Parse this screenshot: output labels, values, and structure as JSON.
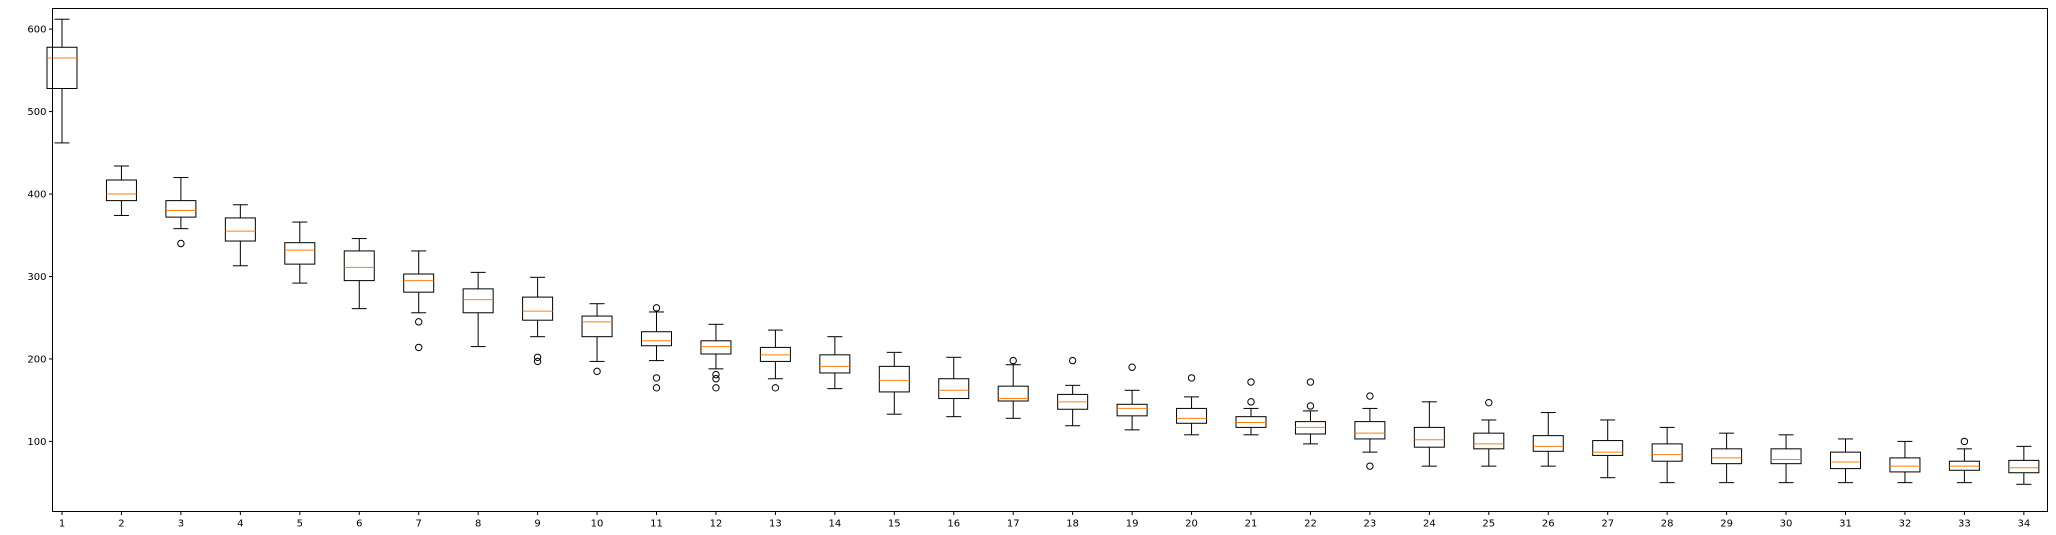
{
  "chart_data": {
    "type": "boxplot",
    "title": "",
    "xlabel": "",
    "ylabel": "",
    "ylim": [
      15,
      625
    ],
    "yticks": [
      100,
      200,
      300,
      400,
      500,
      600
    ],
    "grid": false,
    "categories": [
      "1",
      "2",
      "3",
      "4",
      "5",
      "6",
      "7",
      "8",
      "9",
      "10",
      "11",
      "12",
      "13",
      "14",
      "15",
      "16",
      "17",
      "18",
      "19",
      "20",
      "21",
      "22",
      "23",
      "24",
      "25",
      "26",
      "27",
      "28",
      "29",
      "30",
      "31",
      "32",
      "33",
      "34"
    ],
    "boxes": [
      {
        "whislo": 462,
        "q1": 528,
        "med": 565,
        "q3": 578,
        "whishi": 612,
        "fliers": []
      },
      {
        "whislo": 374,
        "q1": 392,
        "med": 400,
        "q3": 417,
        "whishi": 434,
        "fliers": []
      },
      {
        "whislo": 358,
        "q1": 372,
        "med": 380,
        "q3": 392,
        "whishi": 420,
        "fliers": [
          340
        ]
      },
      {
        "whislo": 313,
        "q1": 343,
        "med": 355,
        "q3": 371,
        "whishi": 387,
        "fliers": []
      },
      {
        "whislo": 292,
        "q1": 315,
        "med": 332,
        "q3": 341,
        "whishi": 366,
        "fliers": []
      },
      {
        "whislo": 261,
        "q1": 295,
        "med": 311,
        "q3": 331,
        "whishi": 346,
        "fliers": []
      },
      {
        "whislo": 256,
        "q1": 281,
        "med": 295,
        "q3": 303,
        "whishi": 331,
        "fliers": [
          245,
          214
        ]
      },
      {
        "whislo": 215,
        "q1": 256,
        "med": 272,
        "q3": 285,
        "whishi": 305,
        "fliers": []
      },
      {
        "whislo": 227,
        "q1": 247,
        "med": 258,
        "q3": 275,
        "whishi": 299,
        "fliers": [
          202,
          197
        ]
      },
      {
        "whislo": 197,
        "q1": 227,
        "med": 245,
        "q3": 252,
        "whishi": 267,
        "fliers": [
          185
        ]
      },
      {
        "whislo": 198,
        "q1": 216,
        "med": 222,
        "q3": 233,
        "whishi": 257,
        "fliers": [
          262,
          177,
          165
        ]
      },
      {
        "whislo": 188,
        "q1": 206,
        "med": 215,
        "q3": 222,
        "whishi": 242,
        "fliers": [
          181,
          176,
          165
        ]
      },
      {
        "whislo": 176,
        "q1": 197,
        "med": 205,
        "q3": 214,
        "whishi": 235,
        "fliers": [
          165
        ]
      },
      {
        "whislo": 164,
        "q1": 183,
        "med": 191,
        "q3": 205,
        "whishi": 227,
        "fliers": []
      },
      {
        "whislo": 133,
        "q1": 160,
        "med": 174,
        "q3": 191,
        "whishi": 208,
        "fliers": []
      },
      {
        "whislo": 130,
        "q1": 152,
        "med": 162,
        "q3": 176,
        "whishi": 202,
        "fliers": []
      },
      {
        "whislo": 128,
        "q1": 149,
        "med": 152,
        "q3": 167,
        "whishi": 193,
        "fliers": [
          198
        ]
      },
      {
        "whislo": 119,
        "q1": 139,
        "med": 148,
        "q3": 157,
        "whishi": 168,
        "fliers": [
          198
        ]
      },
      {
        "whislo": 114,
        "q1": 131,
        "med": 140,
        "q3": 145,
        "whishi": 162,
        "fliers": [
          190
        ]
      },
      {
        "whislo": 108,
        "q1": 122,
        "med": 128,
        "q3": 140,
        "whishi": 154,
        "fliers": [
          177
        ]
      },
      {
        "whislo": 108,
        "q1": 117,
        "med": 123,
        "q3": 130,
        "whishi": 140,
        "fliers": [
          172,
          148
        ]
      },
      {
        "whislo": 97,
        "q1": 109,
        "med": 117,
        "q3": 124,
        "whishi": 137,
        "fliers": [
          172,
          143
        ]
      },
      {
        "whislo": 87,
        "q1": 103,
        "med": 110,
        "q3": 124,
        "whishi": 140,
        "fliers": [
          155,
          70
        ]
      },
      {
        "whislo": 70,
        "q1": 93,
        "med": 102,
        "q3": 117,
        "whishi": 148,
        "fliers": []
      },
      {
        "whislo": 70,
        "q1": 91,
        "med": 97,
        "q3": 110,
        "whishi": 126,
        "fliers": [
          147
        ]
      },
      {
        "whislo": 70,
        "q1": 88,
        "med": 94,
        "q3": 107,
        "whishi": 135,
        "fliers": []
      },
      {
        "whislo": 56,
        "q1": 83,
        "med": 87,
        "q3": 101,
        "whishi": 126,
        "fliers": []
      },
      {
        "whislo": 50,
        "q1": 76,
        "med": 84,
        "q3": 97,
        "whishi": 117,
        "fliers": []
      },
      {
        "whislo": 50,
        "q1": 73,
        "med": 80,
        "q3": 91,
        "whishi": 110,
        "fliers": []
      },
      {
        "whislo": 50,
        "q1": 73,
        "med": 78,
        "q3": 91,
        "whishi": 108,
        "fliers": []
      },
      {
        "whislo": 50,
        "q1": 67,
        "med": 75,
        "q3": 87,
        "whishi": 103,
        "fliers": []
      },
      {
        "whislo": 50,
        "q1": 63,
        "med": 70,
        "q3": 80,
        "whishi": 100,
        "fliers": []
      },
      {
        "whislo": 50,
        "q1": 65,
        "med": 70,
        "q3": 76,
        "whishi": 91,
        "fliers": [
          100
        ]
      },
      {
        "whislo": 48,
        "q1": 62,
        "med": 68,
        "q3": 77,
        "whishi": 94,
        "fliers": []
      }
    ],
    "colors": {
      "box": "#000000",
      "median": "#ff7f0e",
      "flier": "#000000",
      "background": "#ffffff"
    }
  }
}
